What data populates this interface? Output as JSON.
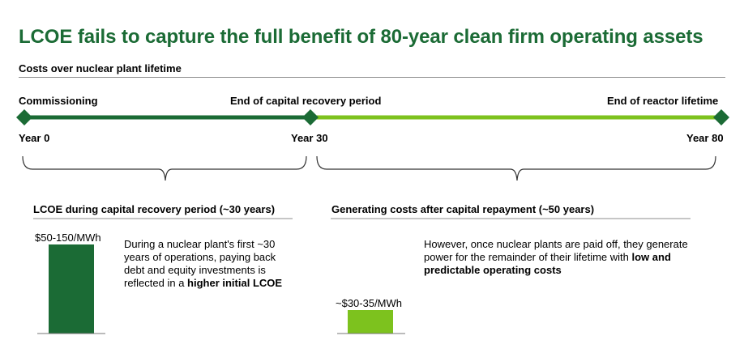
{
  "title": "LCOE fails to capture the full benefit of 80-year clean firm operating assets",
  "subtitle": "Costs over nuclear plant lifetime",
  "timeline": {
    "milestones": [
      {
        "label": "Commissioning",
        "year": "Year 0"
      },
      {
        "label": "End of capital recovery period",
        "year": "Year 30"
      },
      {
        "label": "End of reactor lifetime",
        "year": "Year 80"
      }
    ],
    "colors": {
      "phase1": "#1b6b35",
      "phase2": "#7dc21e",
      "marker": "#1b6b35"
    }
  },
  "left_section": {
    "heading": "LCOE during capital recovery period (~30 years)",
    "bar_label": "$50-150/MWh",
    "bar_color": "#1b6b35",
    "text_plain": "During a nuclear plant's first ~30 years of operations, paying back debt and equity investments is reflected in a ",
    "text_bold": "higher initial LCOE"
  },
  "right_section": {
    "heading": "Generating costs after capital repayment (~50 years)",
    "bar_label": "~$30-35/MWh",
    "bar_color": "#7dc21e",
    "text_plain": "However, once nuclear plants are paid off, they generate power for the remainder of their lifetime with ",
    "text_bold": "low and predictable operating costs"
  }
}
